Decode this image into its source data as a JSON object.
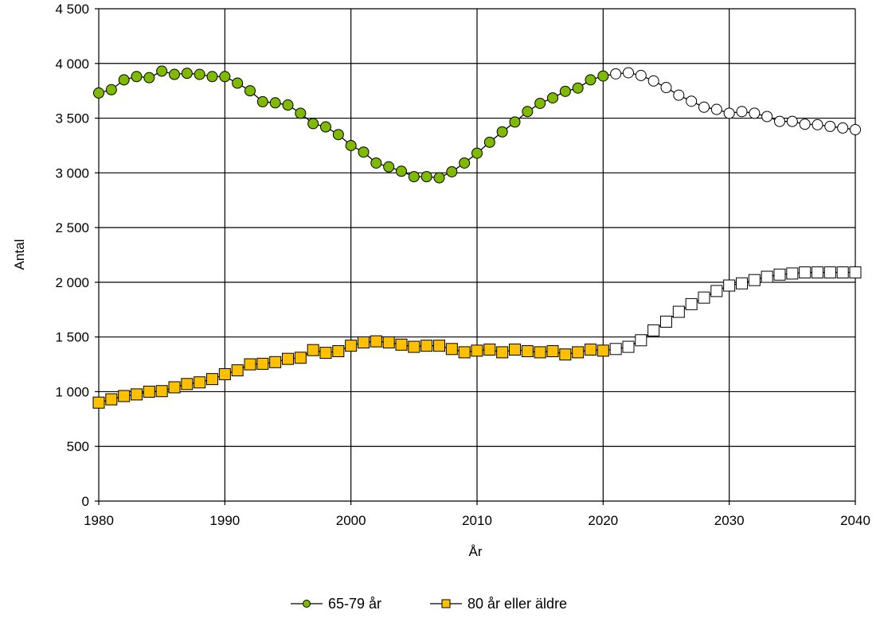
{
  "chart_data": {
    "type": "line",
    "title": "",
    "xlabel": "År",
    "ylabel": "Antal",
    "xlim": [
      1980,
      2040
    ],
    "ylim": [
      0,
      4500
    ],
    "x_ticks": [
      1980,
      1990,
      2000,
      2010,
      2020,
      2030,
      2040
    ],
    "y_ticks": [
      0,
      500,
      1000,
      1500,
      2000,
      2500,
      3000,
      3500,
      4000,
      4500
    ],
    "x_tick_labels": [
      "1980",
      "1990",
      "2000",
      "2010",
      "2020",
      "2030",
      "2040"
    ],
    "y_tick_labels": [
      "0",
      "500",
      "1 000",
      "1 500",
      "2 000",
      "2 500",
      "3 000",
      "3 500",
      "4 000",
      "4 500"
    ],
    "grid": true,
    "legend_position": "bottom",
    "forecast_start": 2021,
    "series": [
      {
        "name": "65-79 år",
        "marker": "circle",
        "color": "#7fba00",
        "forecast_fill": "#ffffff",
        "x": [
          1980,
          1981,
          1982,
          1983,
          1984,
          1985,
          1986,
          1987,
          1988,
          1989,
          1990,
          1991,
          1992,
          1993,
          1994,
          1995,
          1996,
          1997,
          1998,
          1999,
          2000,
          2001,
          2002,
          2003,
          2004,
          2005,
          2006,
          2007,
          2008,
          2009,
          2010,
          2011,
          2012,
          2013,
          2014,
          2015,
          2016,
          2017,
          2018,
          2019,
          2020,
          2021,
          2022,
          2023,
          2024,
          2025,
          2026,
          2027,
          2028,
          2029,
          2030,
          2031,
          2032,
          2033,
          2034,
          2035,
          2036,
          2037,
          2038,
          2039,
          2040
        ],
        "values": [
          3730,
          3760,
          3850,
          3880,
          3870,
          3930,
          3900,
          3910,
          3900,
          3880,
          3880,
          3820,
          3750,
          3650,
          3640,
          3620,
          3545,
          3450,
          3420,
          3350,
          3250,
          3190,
          3090,
          3055,
          3015,
          2965,
          2965,
          2955,
          3010,
          3090,
          3180,
          3280,
          3375,
          3465,
          3560,
          3635,
          3685,
          3745,
          3775,
          3850,
          3885,
          3905,
          3915,
          3890,
          3840,
          3780,
          3710,
          3655,
          3600,
          3580,
          3545,
          3560,
          3545,
          3515,
          3470,
          3470,
          3445,
          3440,
          3425,
          3410,
          3395
        ]
      },
      {
        "name": "80 år eller äldre",
        "marker": "square",
        "color": "#ffc000",
        "forecast_fill": "#ffffff",
        "x": [
          1980,
          1981,
          1982,
          1983,
          1984,
          1985,
          1986,
          1987,
          1988,
          1989,
          1990,
          1991,
          1992,
          1993,
          1994,
          1995,
          1996,
          1997,
          1998,
          1999,
          2000,
          2001,
          2002,
          2003,
          2004,
          2005,
          2006,
          2007,
          2008,
          2009,
          2010,
          2011,
          2012,
          2013,
          2014,
          2015,
          2016,
          2017,
          2018,
          2019,
          2020,
          2021,
          2022,
          2023,
          2024,
          2025,
          2026,
          2027,
          2028,
          2029,
          2030,
          2031,
          2032,
          2033,
          2034,
          2035,
          2036,
          2037,
          2038,
          2039,
          2040
        ],
        "values": [
          900,
          930,
          960,
          975,
          1000,
          1005,
          1040,
          1070,
          1085,
          1115,
          1160,
          1195,
          1250,
          1255,
          1270,
          1300,
          1310,
          1380,
          1355,
          1370,
          1420,
          1450,
          1460,
          1450,
          1430,
          1410,
          1420,
          1420,
          1390,
          1360,
          1375,
          1385,
          1360,
          1385,
          1370,
          1360,
          1370,
          1340,
          1360,
          1385,
          1375,
          1390,
          1410,
          1470,
          1560,
          1640,
          1730,
          1800,
          1860,
          1920,
          1970,
          1990,
          2020,
          2050,
          2070,
          2080,
          2090,
          2090,
          2090,
          2090,
          2090
        ]
      }
    ]
  }
}
